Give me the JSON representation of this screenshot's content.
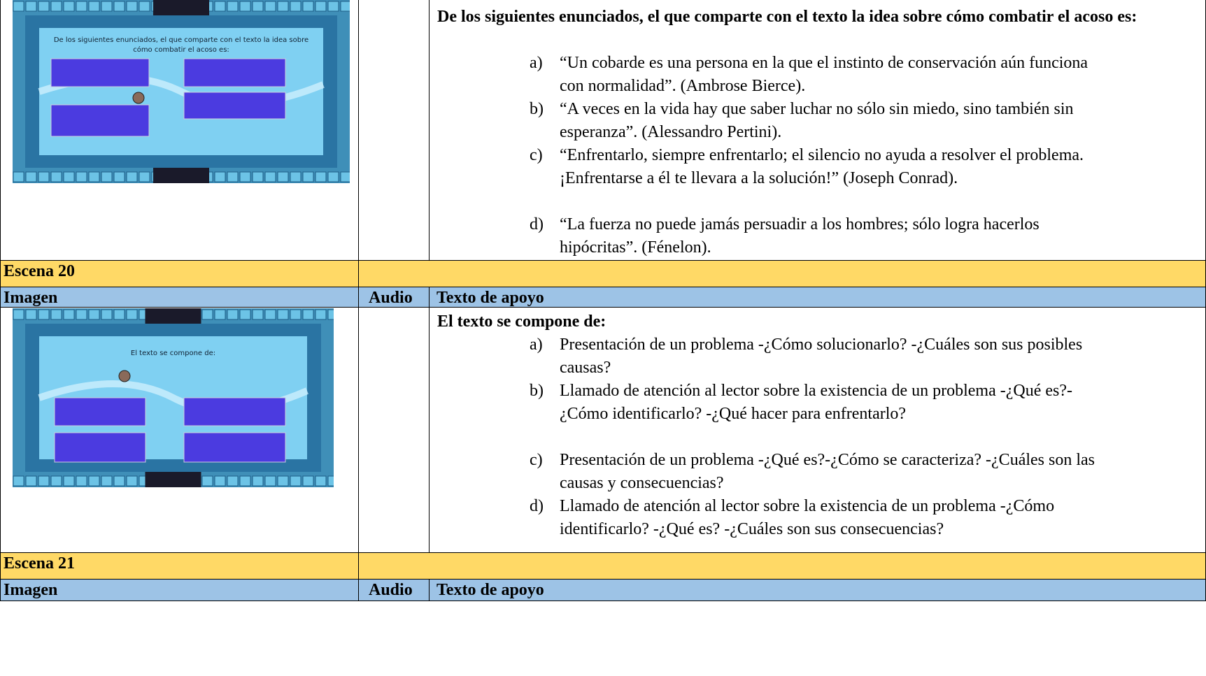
{
  "scene_19": {
    "image_title": [
      "De los siguientes enunciados, el que comparte con el texto la idea sobre",
      "cómo combatir el acoso es:"
    ],
    "question": "De los siguientes enunciados, el que comparte con el texto la idea sobre cómo combatir el acoso es:",
    "options": [
      {
        "label": "a)",
        "text": "“Un cobarde es una persona en la que el instinto de conservación aún funciona con normalidad”. (Ambrose Bierce)."
      },
      {
        "label": "b)",
        "text": "“A veces en la vida hay que saber luchar no sólo sin miedo, sino también sin esperanza”. (Alessandro Pertini)."
      },
      {
        "label": "c)",
        "text": "“Enfrentarlo, siempre enfrentarlo; el silencio no ayuda a resolver el problema. ¡Enfrentarse a él te llevara a la solución!” (Joseph Conrad)."
      },
      {
        "label": "d)",
        "text": "“La fuerza no puede jamás persuadir a los hombres; sólo logra hacerlos hipócritas”. (Fénelon)."
      }
    ]
  },
  "scene_20": {
    "label": "Escena 20",
    "headers": [
      "Imagen",
      "Audio",
      "Texto de apoyo"
    ],
    "image_title": [
      "El texto se compone de:"
    ],
    "question": "El texto se compone de:",
    "options": [
      {
        "label": "a)",
        "text": "Presentación de un problema -¿Cómo solucionarlo? -¿Cuáles son sus posibles causas?"
      },
      {
        "label": "b)",
        "text": "Llamado de atención al lector sobre la existencia de un problema -¿Qué es?-¿Cómo identificarlo? -¿Qué hacer para enfrentarlo?"
      },
      {
        "label": "c)",
        "text": "Presentación de un problema -¿Qué es?-¿Cómo se caracteriza? -¿Cuáles son las causas y consecuencias?"
      },
      {
        "label": "d)",
        "text": "Llamado de atención al lector sobre la existencia de un problema -¿Cómo identificarlo? -¿Qué es? -¿Cuáles son sus consecuencias?"
      }
    ]
  },
  "scene_21": {
    "label": "Escena 21",
    "headers": [
      "Imagen",
      "Audio",
      "Texto de apoyo"
    ]
  }
}
